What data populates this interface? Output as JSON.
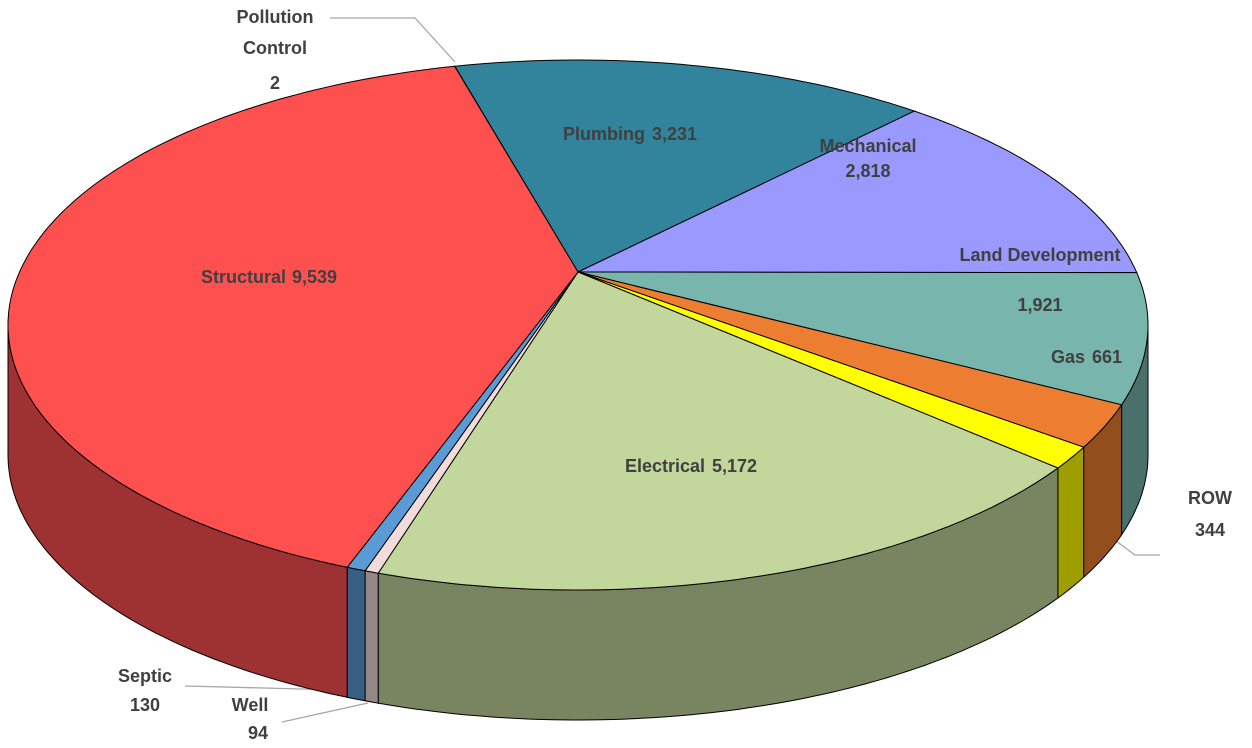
{
  "chart_data": {
    "type": "pie3d",
    "categories": [
      "Pollution Control",
      "Plumbing",
      "Mechanical",
      "Land Development",
      "Gas",
      "ROW",
      "Electrical",
      "Well",
      "Septic",
      "Structural"
    ],
    "values": [
      2,
      3231,
      2818,
      1921,
      661,
      344,
      5172,
      94,
      130,
      9539
    ],
    "value_labels": [
      "2",
      "3,231",
      "2,818",
      "1,921",
      "661",
      "344",
      "5,172",
      "94",
      "130",
      "9,539"
    ],
    "colors": [
      "#a6a6a6",
      "#31849b",
      "#9999ff",
      "#77b5ad",
      "#ed7d31",
      "#ffff00",
      "#c3d69b",
      "#f2dcdb",
      "#5b9bd5",
      "#ff5050"
    ]
  }
}
